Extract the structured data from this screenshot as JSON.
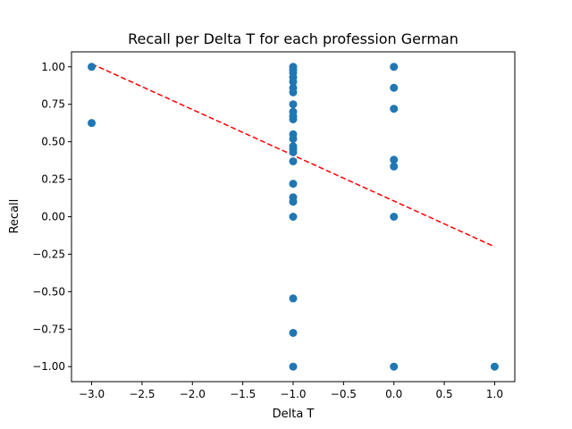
{
  "chart_data": {
    "type": "scatter",
    "title": "Recall per Delta T for each profession German",
    "xlabel": "Delta T",
    "ylabel": "Recall",
    "xlim": [
      -3.2,
      1.2
    ],
    "ylim": [
      -1.1,
      1.1
    ],
    "xticks": [
      -3.0,
      -2.5,
      -2.0,
      -1.5,
      -1.0,
      -0.5,
      0.0,
      0.5,
      1.0
    ],
    "xtick_labels": [
      "−3.0",
      "−2.5",
      "−2.0",
      "−1.5",
      "−1.0",
      "−0.5",
      "0.0",
      "0.5",
      "1.0"
    ],
    "yticks": [
      -1.0,
      -0.75,
      -0.5,
      -0.25,
      0.0,
      0.25,
      0.5,
      0.75,
      1.0
    ],
    "ytick_labels": [
      "−1.00",
      "−0.75",
      "−0.50",
      "−0.25",
      "0.00",
      "0.25",
      "0.50",
      "0.75",
      "1.00"
    ],
    "grid": false,
    "legend": "none",
    "point_color": "#1f77b4",
    "trend_color": "#ff0000",
    "points": [
      {
        "x": -3.0,
        "y": 1.0
      },
      {
        "x": -3.0,
        "y": 0.625
      },
      {
        "x": -1.0,
        "y": 1.0
      },
      {
        "x": -1.0,
        "y": 0.98
      },
      {
        "x": -1.0,
        "y": 0.96
      },
      {
        "x": -1.0,
        "y": 0.93
      },
      {
        "x": -1.0,
        "y": 0.9
      },
      {
        "x": -1.0,
        "y": 0.86
      },
      {
        "x": -1.0,
        "y": 0.83
      },
      {
        "x": -1.0,
        "y": 0.75
      },
      {
        "x": -1.0,
        "y": 0.7
      },
      {
        "x": -1.0,
        "y": 0.67
      },
      {
        "x": -1.0,
        "y": 0.65
      },
      {
        "x": -1.0,
        "y": 0.55
      },
      {
        "x": -1.0,
        "y": 0.52
      },
      {
        "x": -1.0,
        "y": 0.47
      },
      {
        "x": -1.0,
        "y": 0.45
      },
      {
        "x": -1.0,
        "y": 0.43
      },
      {
        "x": -1.0,
        "y": 0.37
      },
      {
        "x": -1.0,
        "y": 0.22
      },
      {
        "x": -1.0,
        "y": 0.13
      },
      {
        "x": -1.0,
        "y": 0.1
      },
      {
        "x": -1.0,
        "y": 0.0
      },
      {
        "x": -1.0,
        "y": -0.545
      },
      {
        "x": -1.0,
        "y": -0.775
      },
      {
        "x": -1.0,
        "y": -1.0
      },
      {
        "x": 0.0,
        "y": 1.0
      },
      {
        "x": 0.0,
        "y": 0.86
      },
      {
        "x": 0.0,
        "y": 0.72
      },
      {
        "x": 0.0,
        "y": 0.38
      },
      {
        "x": 0.0,
        "y": 0.335
      },
      {
        "x": 0.0,
        "y": 0.0
      },
      {
        "x": 0.0,
        "y": -1.0
      },
      {
        "x": 1.0,
        "y": -1.0
      }
    ],
    "trend_line": {
      "x": [
        -3.0,
        1.0
      ],
      "y": [
        1.02,
        -0.2
      ]
    }
  }
}
